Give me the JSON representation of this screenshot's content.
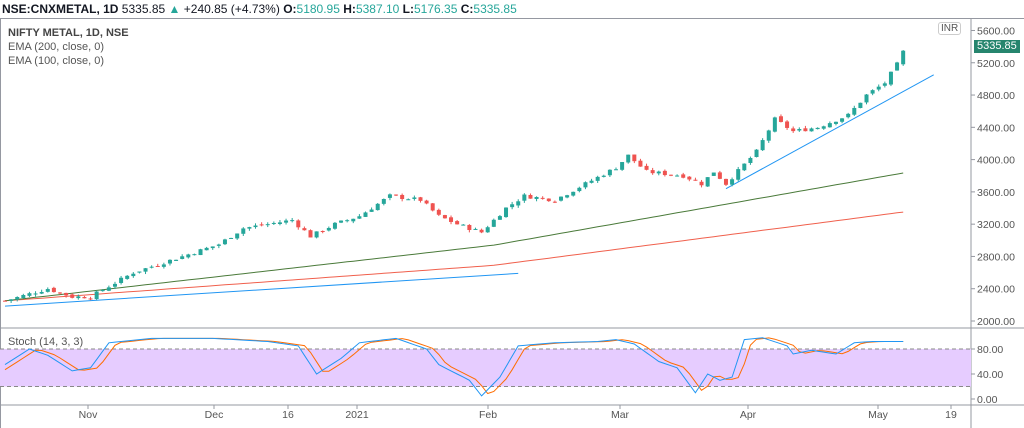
{
  "header": {
    "symbol": "NSE:CNXMETAL, 1D",
    "last": "5335.85",
    "change": "+240.85 (+4.73%)",
    "o_label": "O:",
    "o": "5180.95",
    "h_label": "H:",
    "h": "5387.10",
    "l_label": "L:",
    "l": "5176.35",
    "c_label": "C:",
    "c": "5335.85"
  },
  "legend": {
    "title": "NIFTY METAL, 1D, NSE",
    "ema200": "EMA (200, close, 0)",
    "ema100": "EMA (100, close, 0)"
  },
  "stoch_label": "Stoch (14, 3, 3)",
  "currency": "INR",
  "current_price": "5335.85",
  "colors": {
    "up": "#26a69a",
    "down": "#ef5350",
    "ema100": "#4a7a3a",
    "ema200": "#f0604d",
    "trend": "#2196f3",
    "stochK": "#2196f3",
    "stochD": "#ff6d00",
    "band": "#e6ccff"
  },
  "chart_data": {
    "type": "candlestick",
    "price_axis": {
      "ticks": [
        "5600.00",
        "5200.00",
        "4800.00",
        "4400.00",
        "4000.00",
        "3600.00",
        "3200.00",
        "2800.00",
        "2400.00",
        "2000.00"
      ],
      "range": [
        2000,
        5600
      ]
    },
    "stoch_axis": {
      "ticks": [
        "80.00",
        "40.00",
        "0.00"
      ],
      "band": [
        20,
        80
      ]
    },
    "time_axis": [
      "Nov",
      "Dec",
      "16",
      "2021",
      "Feb",
      "Mar",
      "Apr",
      "May",
      "19"
    ],
    "close_path": [
      [
        0,
        2250
      ],
      [
        7,
        2400
      ],
      [
        11,
        2300
      ],
      [
        14,
        2300
      ],
      [
        21,
        2600
      ],
      [
        29,
        2800
      ],
      [
        35,
        2950
      ],
      [
        39,
        3150
      ],
      [
        47,
        3250
      ],
      [
        50,
        3050
      ],
      [
        54,
        3200
      ],
      [
        58,
        3300
      ],
      [
        63,
        3550
      ],
      [
        68,
        3500
      ],
      [
        71,
        3300
      ],
      [
        74,
        3200
      ],
      [
        78,
        3100
      ],
      [
        82,
        3400
      ],
      [
        85,
        3550
      ],
      [
        90,
        3500
      ],
      [
        95,
        3700
      ],
      [
        100,
        3900
      ],
      [
        102,
        4050
      ],
      [
        105,
        3850
      ],
      [
        111,
        3800
      ],
      [
        114,
        3700
      ],
      [
        116,
        3850
      ],
      [
        118,
        3700
      ],
      [
        123,
        4100
      ],
      [
        126,
        4500
      ],
      [
        129,
        4350
      ],
      [
        133,
        4400
      ],
      [
        138,
        4550
      ],
      [
        141,
        4800
      ],
      [
        144,
        4950
      ],
      [
        146,
        5180
      ],
      [
        147,
        5335
      ]
    ],
    "ema100": [
      [
        0,
        2250
      ],
      [
        80,
        2940
      ],
      [
        147,
        3834
      ]
    ],
    "ema200": [
      [
        0,
        2250
      ],
      [
        80,
        2690
      ],
      [
        147,
        3350
      ]
    ],
    "trendlines": [
      [
        [
          0,
          2185
        ],
        [
          84,
          2590
        ]
      ],
      [
        [
          118,
          3640
        ],
        [
          152,
          5050
        ]
      ]
    ],
    "stoch_k": [
      [
        0,
        55
      ],
      [
        4,
        80
      ],
      [
        7,
        70
      ],
      [
        11,
        45
      ],
      [
        14,
        50
      ],
      [
        17,
        90
      ],
      [
        24,
        97
      ],
      [
        34,
        97
      ],
      [
        43,
        92
      ],
      [
        48,
        85
      ],
      [
        51,
        40
      ],
      [
        55,
        65
      ],
      [
        58,
        90
      ],
      [
        64,
        97
      ],
      [
        69,
        80
      ],
      [
        71,
        55
      ],
      [
        76,
        30
      ],
      [
        78,
        5
      ],
      [
        81,
        35
      ],
      [
        84,
        85
      ],
      [
        90,
        90
      ],
      [
        97,
        92
      ],
      [
        100,
        95
      ],
      [
        103,
        88
      ],
      [
        107,
        60
      ],
      [
        110,
        50
      ],
      [
        113,
        10
      ],
      [
        115,
        40
      ],
      [
        117,
        30
      ],
      [
        119,
        35
      ],
      [
        121,
        95
      ],
      [
        124,
        98
      ],
      [
        128,
        85
      ],
      [
        129,
        72
      ],
      [
        132,
        78
      ],
      [
        136,
        72
      ],
      [
        139,
        90
      ],
      [
        142,
        92
      ],
      [
        147,
        92
      ]
    ]
  }
}
